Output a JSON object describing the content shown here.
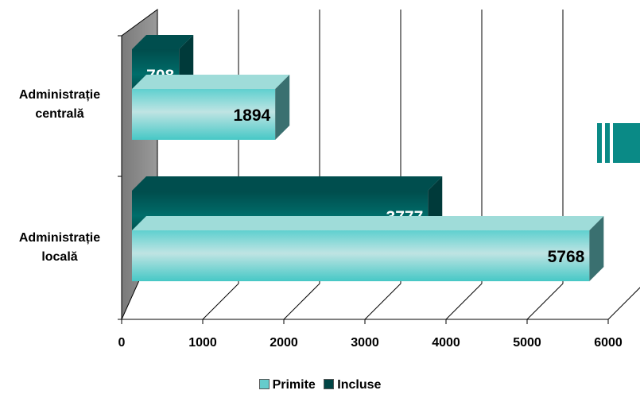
{
  "chart_data": {
    "type": "bar",
    "orientation": "horizontal",
    "three_d": true,
    "categories": [
      "Administrație centrală",
      "Administrație locală"
    ],
    "category_labels": [
      [
        "Administrație",
        "centrală"
      ],
      [
        "Administrație",
        "locală"
      ]
    ],
    "series": [
      {
        "name": "Primite",
        "values": [
          1894,
          5768
        ],
        "color": "#66cccc"
      },
      {
        "name": "Incluse",
        "values": [
          708,
          3777
        ],
        "color": "#004444"
      }
    ],
    "xlim": [
      0,
      6000
    ],
    "xticks": [
      "0",
      "1000",
      "2000",
      "3000",
      "4000",
      "5000",
      "6000"
    ],
    "grid": true,
    "legend_position": "bottom"
  },
  "legend": {
    "items": [
      {
        "label": "Primite",
        "color": "#66cccc"
      },
      {
        "label": "Incluse",
        "color": "#004444"
      }
    ]
  }
}
